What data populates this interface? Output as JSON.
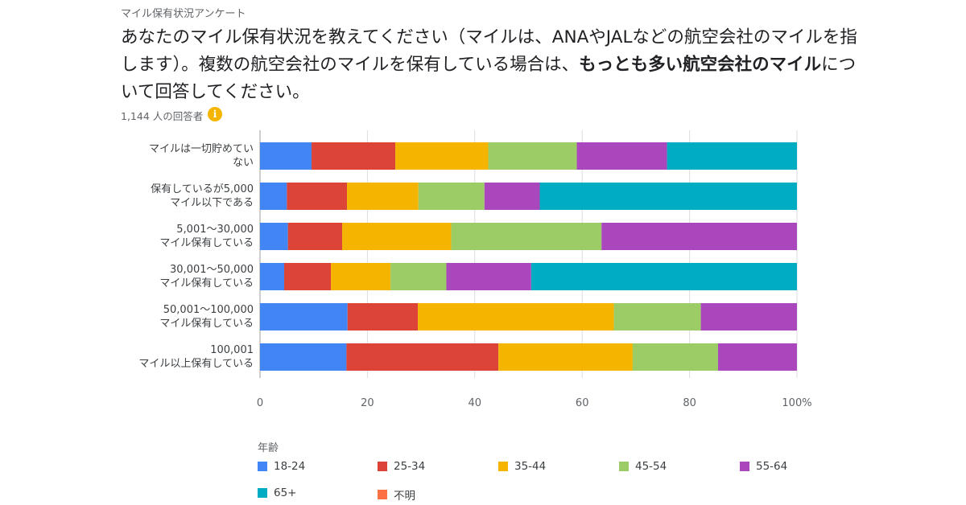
{
  "survey_name": "マイル保有状況アンケート",
  "question": {
    "part1": "あなたのマイル保有状況を教えてください（マイルは、ANAやJALなどの航空会社のマイルを指します）。複数の航空会社のマイルを保有している場合は、",
    "bold": "もっとも多い航空会社のマイル",
    "part2": "について回答してください。"
  },
  "respondents": "1,144 人の回答者",
  "info_icon": "info-icon",
  "legend_title": "年齢",
  "chart_data": {
    "type": "bar",
    "orientation": "horizontal",
    "stacked": "percent",
    "categories": [
      [
        "マイルは一切貯めてい",
        "ない"
      ],
      [
        "保有しているが5,000",
        "マイル以下である"
      ],
      [
        "5,001〜30,000",
        "マイル保有している"
      ],
      [
        "30,001〜50,000",
        "マイル保有している"
      ],
      [
        "50,001〜100,000",
        "マイル保有している"
      ],
      [
        "100,001",
        "マイル以上保有している"
      ]
    ],
    "series": [
      {
        "name": "18-24",
        "color": "#4285f4",
        "values": [
          9.6,
          5.0,
          5.2,
          4.5,
          16.3,
          16.1
        ]
      },
      {
        "name": "25-34",
        "color": "#db4437",
        "values": [
          15.6,
          11.2,
          10.1,
          8.7,
          13.1,
          28.3
        ]
      },
      {
        "name": "35-44",
        "color": "#f4b400",
        "values": [
          17.3,
          13.3,
          20.3,
          11.1,
          36.5,
          25.0
        ]
      },
      {
        "name": "45-54",
        "color": "#9ccc65",
        "values": [
          16.5,
          12.3,
          28.0,
          10.4,
          16.2,
          15.9
        ]
      },
      {
        "name": "55-64",
        "color": "#ab47bc",
        "values": [
          16.8,
          10.3,
          36.4,
          15.8,
          17.9,
          14.7
        ]
      },
      {
        "name": "65+",
        "color": "#00acc1",
        "values": [
          24.2,
          47.9,
          0,
          49.5,
          0,
          0
        ]
      },
      {
        "name": "不明",
        "color": "#ff7043",
        "values": [
          0,
          0,
          0,
          0,
          0,
          0
        ]
      }
    ],
    "xlim": [
      0,
      100
    ],
    "xticks": [
      "0",
      "20",
      "40",
      "60",
      "80",
      "100%"
    ],
    "grid": true,
    "legend": "bottom"
  }
}
